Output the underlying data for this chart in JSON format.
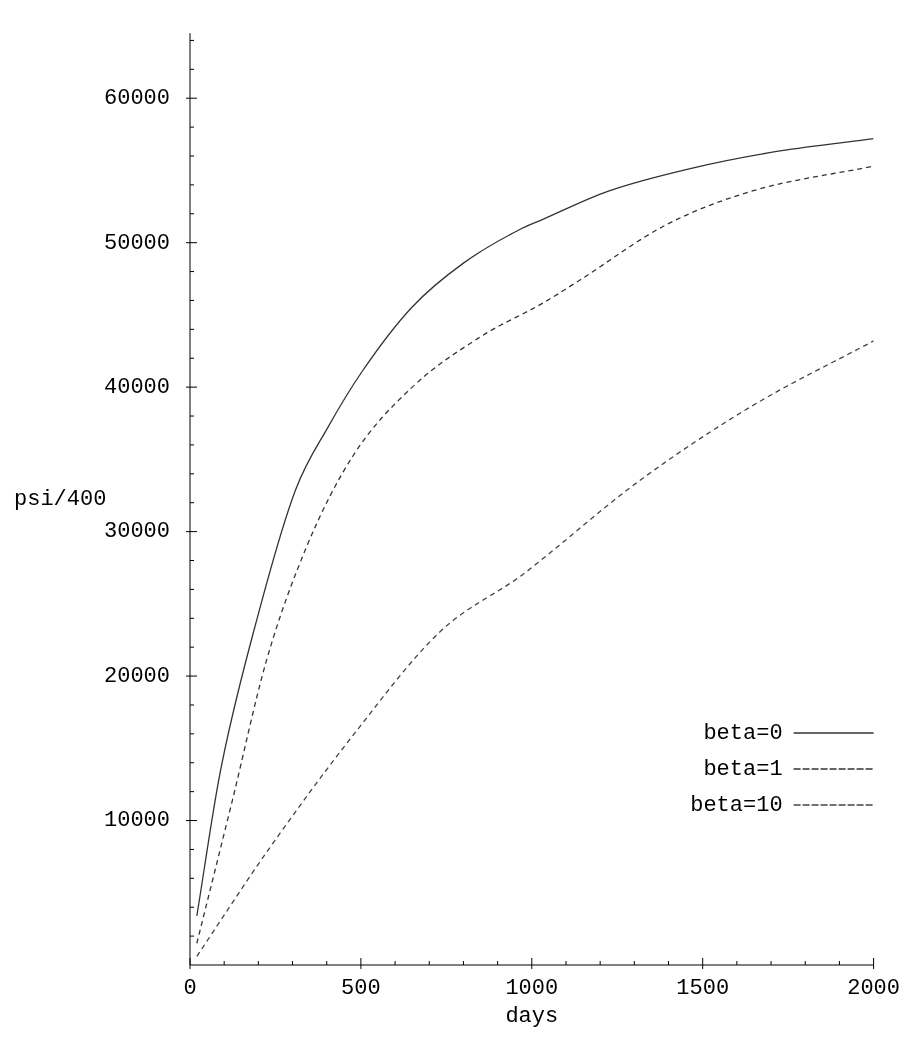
{
  "chart_data": {
    "type": "line",
    "xlabel": "days",
    "ylabel": "psi/400",
    "xlim": [
      0,
      2000
    ],
    "ylim": [
      0,
      64500
    ],
    "xticks": [
      {
        "value": 0,
        "label": "0"
      },
      {
        "value": 100,
        "label": null
      },
      {
        "value": 200,
        "label": null
      },
      {
        "value": 300,
        "label": null
      },
      {
        "value": 400,
        "label": null
      },
      500,
      {
        "value": 600,
        "label": null
      },
      {
        "value": 700,
        "label": null
      },
      {
        "value": 800,
        "label": null
      },
      {
        "value": 900,
        "label": null
      },
      1000,
      {
        "value": 1100,
        "label": null
      },
      {
        "value": 1200,
        "label": null
      },
      {
        "value": 1300,
        "label": null
      },
      {
        "value": 1400,
        "label": null
      },
      1500,
      {
        "value": 1600,
        "label": null
      },
      {
        "value": 1700,
        "label": null
      },
      {
        "value": 1800,
        "label": null
      },
      {
        "value": 1900,
        "label": null
      },
      2000
    ],
    "yticks": [
      {
        "value": 2000,
        "label": null
      },
      {
        "value": 4000,
        "label": null
      },
      {
        "value": 6000,
        "label": null
      },
      {
        "value": 8000,
        "label": null
      },
      10000,
      {
        "value": 12000,
        "label": null
      },
      {
        "value": 14000,
        "label": null
      },
      {
        "value": 16000,
        "label": null
      },
      {
        "value": 18000,
        "label": null
      },
      20000,
      {
        "value": 22000,
        "label": null
      },
      {
        "value": 24000,
        "label": null
      },
      {
        "value": 26000,
        "label": null
      },
      {
        "value": 28000,
        "label": null
      },
      30000,
      {
        "value": 32000,
        "label": null
      },
      {
        "value": 34000,
        "label": null
      },
      {
        "value": 36000,
        "label": null
      },
      {
        "value": 38000,
        "label": null
      },
      40000,
      {
        "value": 42000,
        "label": null
      },
      {
        "value": 44000,
        "label": null
      },
      {
        "value": 46000,
        "label": null
      },
      {
        "value": 48000,
        "label": null
      },
      50000,
      {
        "value": 52000,
        "label": null
      },
      {
        "value": 54000,
        "label": null
      },
      {
        "value": 56000,
        "label": null
      },
      {
        "value": 58000,
        "label": null
      },
      60000,
      {
        "value": 62000,
        "label": null
      },
      {
        "value": 64000,
        "label": null
      }
    ],
    "grid": false,
    "legend": "bottom right",
    "marker": "none",
    "series": [
      {
        "name": "beta=0",
        "color": "#333333",
        "line_style": "solid",
        "x": [
          20,
          88,
          200,
          309,
          403,
          504,
          648,
          801,
          972,
          1031,
          1222,
          1473,
          1726,
          2000
        ],
        "values": [
          3400,
          13300,
          24300,
          32900,
          37200,
          41100,
          45500,
          48600,
          51000,
          51600,
          53550,
          55180,
          56350,
          57200
        ]
      },
      {
        "name": "beta=1",
        "color": "#333333",
        "line_style": "dashed",
        "x": [
          20,
          124,
          224,
          342,
          477,
          648,
          851,
          1031,
          1140,
          1390,
          1641,
          2000
        ],
        "values": [
          1500,
          11400,
          21100,
          29000,
          35250,
          39950,
          43500,
          45800,
          47400,
          51200,
          53550,
          55300
        ]
      },
      {
        "name": "beta=10",
        "color": "#444444",
        "line_style": "dashed",
        "x": [
          20,
          224,
          477,
          733,
          972,
          1031,
          1308,
          1641,
          2000
        ],
        "values": [
          600,
          7800,
          15900,
          23100,
          27000,
          28100,
          33400,
          38650,
          43200
        ]
      }
    ]
  }
}
